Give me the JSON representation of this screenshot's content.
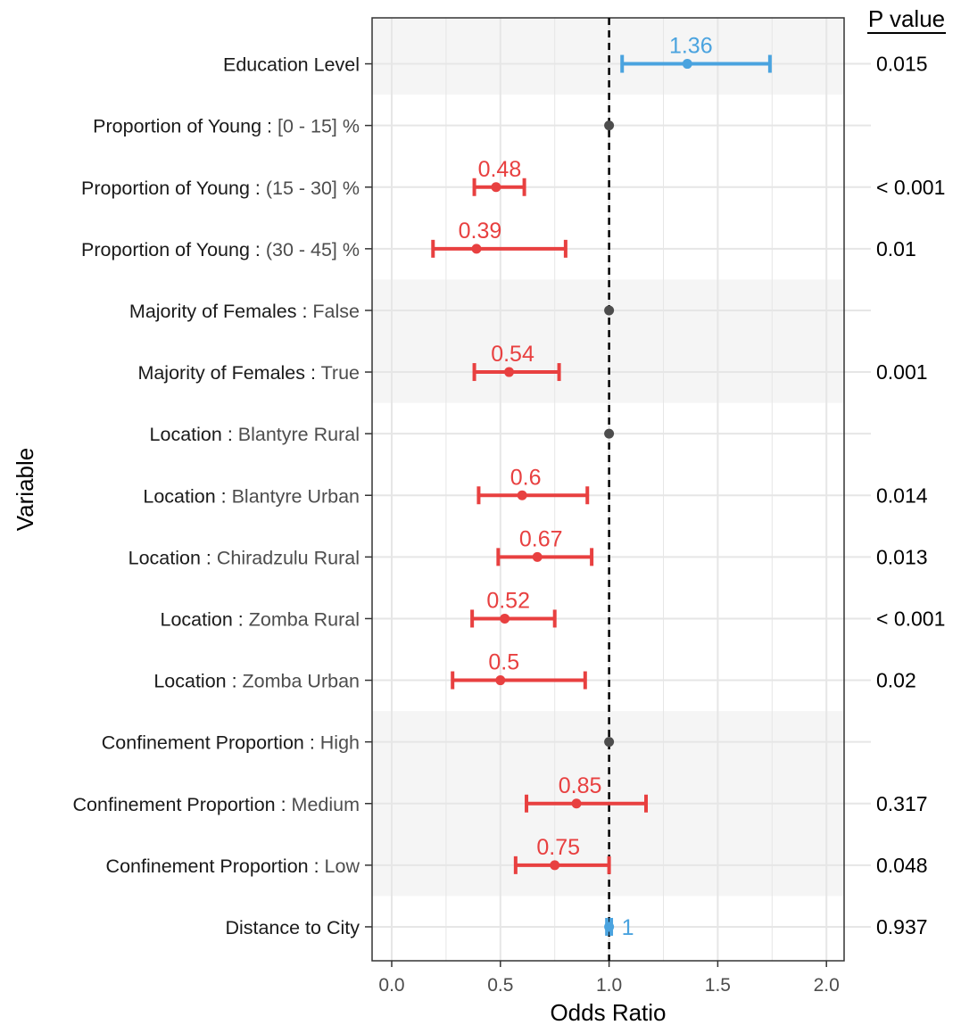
{
  "chart_data": {
    "type": "forest",
    "xlabel": "Odds Ratio",
    "ylabel": "Variable",
    "pvalue_header": "P value",
    "xlim": [
      -0.1,
      2.08
    ],
    "x_ticks": [
      0.0,
      0.5,
      1.0,
      1.5,
      2.0
    ],
    "x_tick_labels": [
      "0.0",
      "0.5",
      "1.0",
      "1.5",
      "2.0"
    ],
    "reference_line": 1.0,
    "grid": true,
    "colors": {
      "significant_higher": "#4aa3df",
      "significant_lower": "#e84040",
      "reference": "#4d4d4d",
      "band": "#f5f5f5",
      "grid": "#e6e6e6"
    },
    "rows": [
      {
        "variable": "Education Level",
        "level": "",
        "or": 1.36,
        "lo": 1.06,
        "hi": 1.74,
        "or_label": "1.36",
        "p": "0.015",
        "kind": "higher",
        "band": true
      },
      {
        "variable": "Proportion of Young",
        "level": "[0 - 15] %",
        "or": 1.0,
        "lo": null,
        "hi": null,
        "or_label": "",
        "p": "",
        "kind": "reference",
        "band": false
      },
      {
        "variable": "Proportion of Young",
        "level": "(15 - 30] %",
        "or": 0.48,
        "lo": 0.38,
        "hi": 0.61,
        "or_label": "0.48",
        "p": "< 0.001",
        "kind": "lower",
        "band": false
      },
      {
        "variable": "Proportion of Young",
        "level": "(30 - 45] %",
        "or": 0.39,
        "lo": 0.19,
        "hi": 0.8,
        "or_label": "0.39",
        "p": "0.01",
        "kind": "lower",
        "band": false
      },
      {
        "variable": "Majority of Females",
        "level": "False",
        "or": 1.0,
        "lo": null,
        "hi": null,
        "or_label": "",
        "p": "",
        "kind": "reference",
        "band": true
      },
      {
        "variable": "Majority of Females",
        "level": "True",
        "or": 0.54,
        "lo": 0.38,
        "hi": 0.77,
        "or_label": "0.54",
        "p": "0.001",
        "kind": "lower",
        "band": true
      },
      {
        "variable": "Location",
        "level": "Blantyre Rural",
        "or": 1.0,
        "lo": null,
        "hi": null,
        "or_label": "",
        "p": "",
        "kind": "reference",
        "band": false
      },
      {
        "variable": "Location",
        "level": "Blantyre Urban",
        "or": 0.6,
        "lo": 0.4,
        "hi": 0.9,
        "or_label": "0.6",
        "p": "0.014",
        "kind": "lower",
        "band": false
      },
      {
        "variable": "Location",
        "level": "Chiradzulu Rural",
        "or": 0.67,
        "lo": 0.49,
        "hi": 0.92,
        "or_label": "0.67",
        "p": "0.013",
        "kind": "lower",
        "band": false
      },
      {
        "variable": "Location",
        "level": "Zomba Rural",
        "or": 0.52,
        "lo": 0.37,
        "hi": 0.75,
        "or_label": "0.52",
        "p": "< 0.001",
        "kind": "lower",
        "band": false
      },
      {
        "variable": "Location",
        "level": "Zomba Urban",
        "or": 0.5,
        "lo": 0.28,
        "hi": 0.89,
        "or_label": "0.5",
        "p": "0.02",
        "kind": "lower",
        "band": false
      },
      {
        "variable": "Confinement Proportion",
        "level": "High",
        "or": 1.0,
        "lo": null,
        "hi": null,
        "or_label": "",
        "p": "",
        "kind": "reference",
        "band": true
      },
      {
        "variable": "Confinement Proportion",
        "level": "Medium",
        "or": 0.85,
        "lo": 0.62,
        "hi": 1.17,
        "or_label": "0.85",
        "p": "0.317",
        "kind": "lower",
        "band": true
      },
      {
        "variable": "Confinement Proportion",
        "level": "Low",
        "or": 0.75,
        "lo": 0.57,
        "hi": 1.0,
        "or_label": "0.75",
        "p": "0.048",
        "kind": "lower",
        "band": true
      },
      {
        "variable": "Distance to City",
        "level": "",
        "or": 1.0,
        "lo": 0.99,
        "hi": 1.01,
        "or_label": "1",
        "p": "0.937",
        "kind": "higher",
        "band": false
      }
    ]
  }
}
